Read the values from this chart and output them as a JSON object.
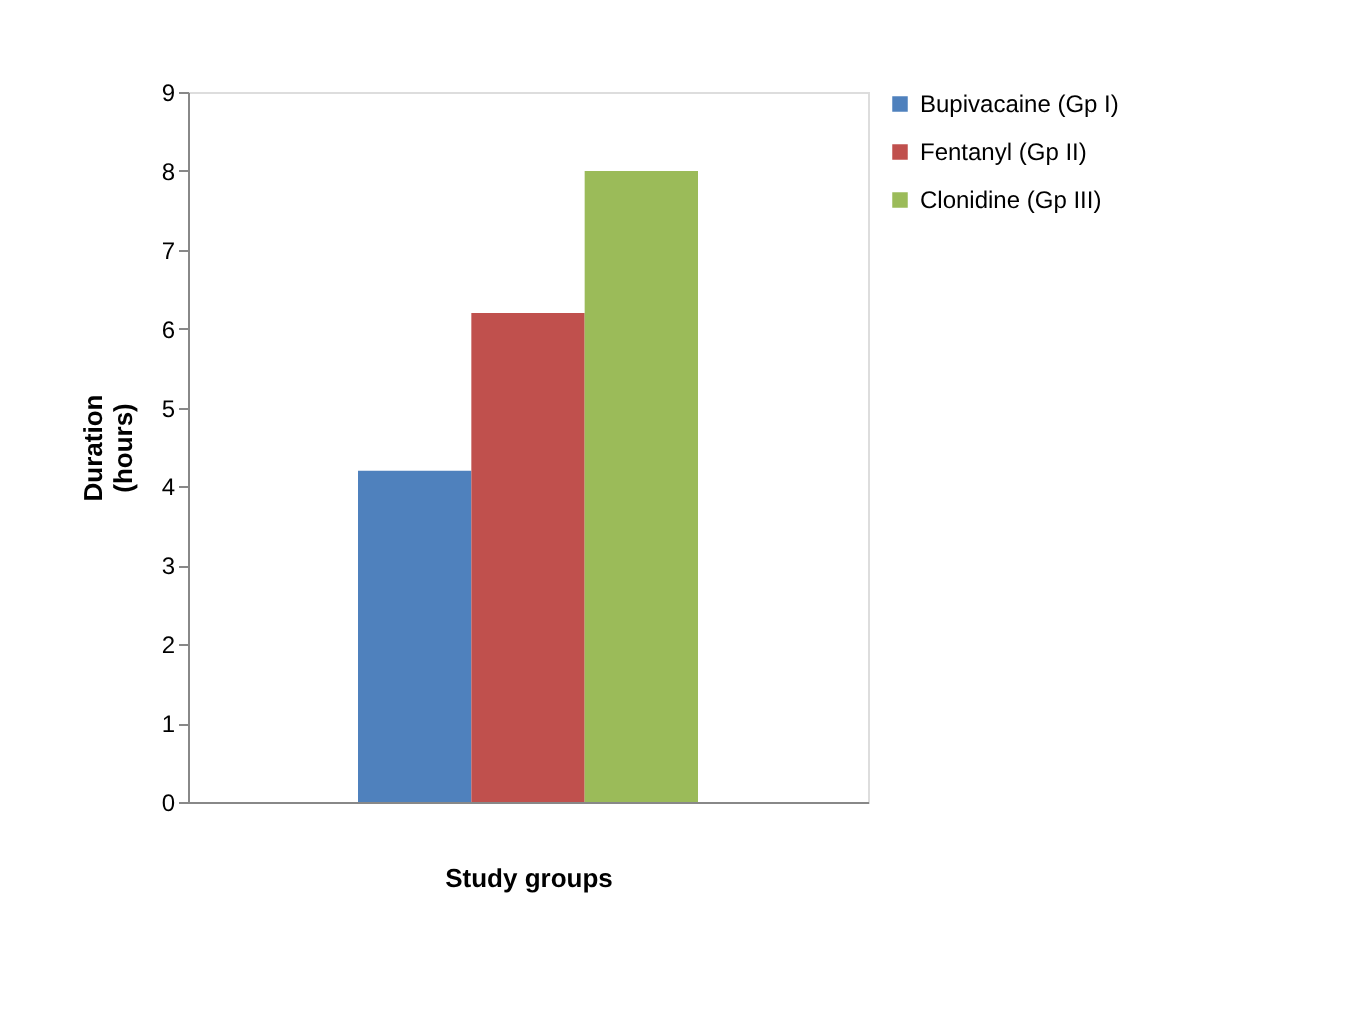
{
  "chart_data": {
    "type": "bar",
    "xlabel": "Study groups",
    "ylabel": "Duration (hours)",
    "categories": [
      null
    ],
    "series": [
      {
        "name": "Bupivacaine (Gp I)",
        "color": "#4f81bd",
        "values": [
          4.2
        ]
      },
      {
        "name": "Fentanyl (Gp II)",
        "color": "#c0504d",
        "values": [
          6.2
        ]
      },
      {
        "name": "Clonidine (Gp III)",
        "color": "#9bbb59",
        "values": [
          8.0
        ]
      }
    ],
    "ylim": [
      0,
      9
    ],
    "yticks": [
      0,
      1,
      2,
      3,
      4,
      5,
      6,
      7,
      8,
      9
    ],
    "grid": false,
    "legend": "right"
  }
}
